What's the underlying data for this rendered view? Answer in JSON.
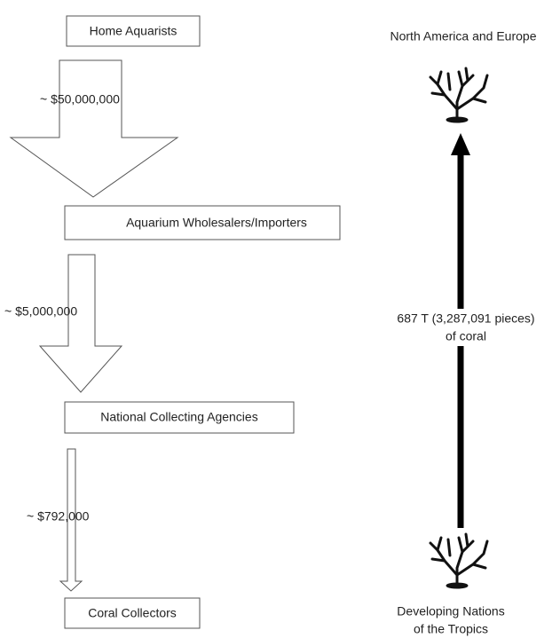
{
  "nodes": [
    {
      "label": "Home Aquarists"
    },
    {
      "label": "Aquarium Wholesalers/Importers"
    },
    {
      "label": "National Collecting Agencies"
    },
    {
      "label": "Coral Collectors"
    }
  ],
  "flows": [
    {
      "amount": "~ $50,000,000"
    },
    {
      "amount": "~ $5,000,000"
    },
    {
      "amount": "~ $792,000"
    }
  ],
  "destination": "North America and Europe",
  "origin": [
    "Developing Nations",
    "of the Tropics"
  ],
  "trade": [
    "687 T (3,287,091 pieces)",
    "of coral"
  ]
}
